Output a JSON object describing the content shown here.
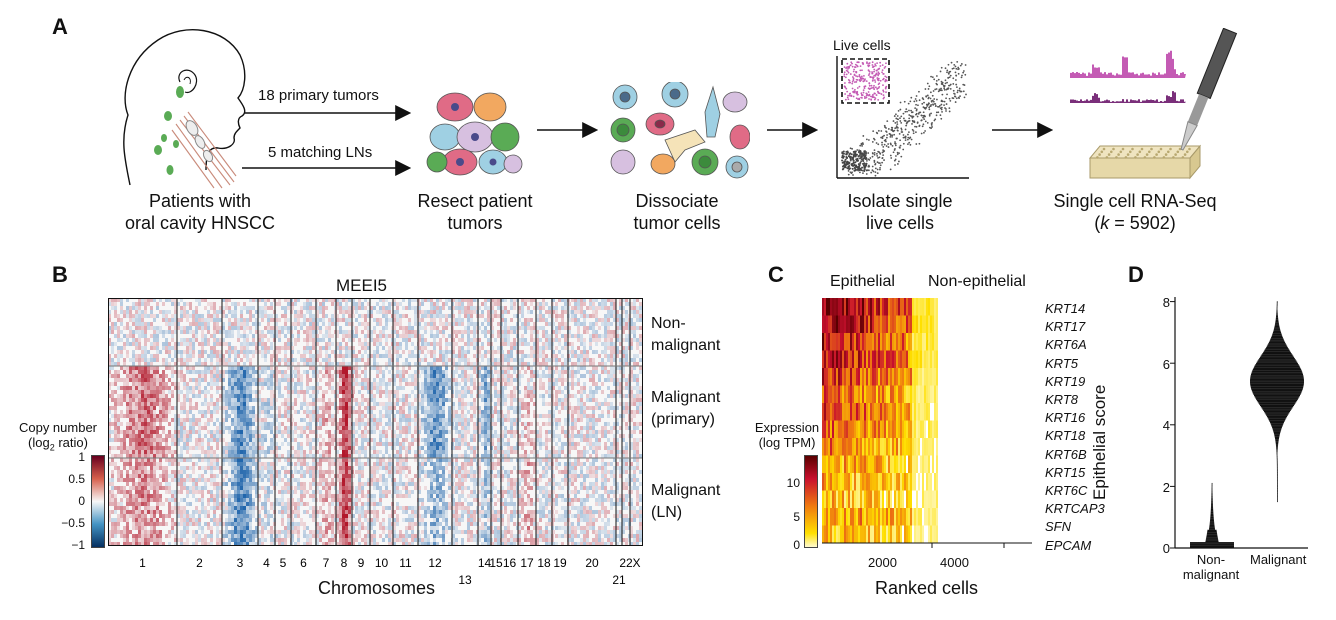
{
  "panel_a": {
    "label": "A",
    "patients_label_line1": "Patients with",
    "patients_label_line2": "oral cavity HNSCC",
    "arrow1_label": "18 primary tumors",
    "arrow2_label": "5 matching LNs",
    "resect_line1": "Resect patient",
    "resect_line2": "tumors",
    "dissociate_line1": "Dissociate",
    "dissociate_line2": "tumor cells",
    "live_cells_label": "Live cells",
    "isolate_line1": "Isolate single",
    "isolate_line2": "live cells",
    "scrna_line1": "Single cell RNA-Seq",
    "scrna_k": "k",
    "scrna_line2_rest": " = 5902)"
  },
  "panel_b": {
    "label": "B",
    "title": "MEEI5",
    "row_labels": [
      "Non-\nmalignant",
      "Malignant\n(primary)",
      "Malignant\n(LN)"
    ],
    "colorbar_title_line1": "Copy number",
    "colorbar_title_line2a": "(log",
    "colorbar_title_sub": "2",
    "colorbar_title_line2b": " ratio)",
    "colorbar_ticks": [
      "1",
      "0.5",
      "0",
      "−0.5",
      "−1"
    ],
    "chromosomes_top": [
      "1",
      "2",
      "3",
      "4",
      "5",
      "6",
      "7",
      "8",
      "9",
      "10",
      "11",
      "12",
      "14",
      "15",
      "16",
      "17",
      "18",
      "19",
      "20",
      "22",
      "X"
    ],
    "chromosomes_bottom": [
      "13",
      "21"
    ],
    "xlabel": "Chromosomes"
  },
  "panel_c": {
    "label": "C",
    "header_epithelial": "Epithelial",
    "header_nonepithelial": "Non-epithelial",
    "genes": [
      "KRT14",
      "KRT17",
      "KRT6A",
      "KRT5",
      "KRT19",
      "KRT8",
      "KRT16",
      "KRT18",
      "KRT6B",
      "KRT15",
      "KRT6C",
      "KRTCAP3",
      "SFN",
      "EPCAM"
    ],
    "colorbar_title_line1": "Expression",
    "colorbar_title_line2": "(log TPM)",
    "colorbar_ticks": [
      "10",
      "5",
      "0"
    ],
    "x_ticks": [
      "2000",
      "4000"
    ],
    "xlabel": "Ranked cells"
  },
  "panel_d": {
    "label": "D",
    "ylabel": "Epithelial score",
    "y_ticks": [
      "8",
      "6",
      "4",
      "2",
      "0"
    ],
    "cat1_line1": "Non-",
    "cat1_line2": "malignant",
    "cat2": "Malignant"
  },
  "chart_data": [
    {
      "type": "heatmap",
      "title": "MEEI5",
      "xlabel": "Chromosomes",
      "categories": [
        "1",
        "2",
        "3",
        "4",
        "5",
        "6",
        "7",
        "8",
        "9",
        "10",
        "11",
        "12",
        "13",
        "14",
        "15",
        "16",
        "17",
        "18",
        "19",
        "20",
        "21",
        "22",
        "X"
      ],
      "rows": [
        "Non-malignant",
        "Malignant (primary)",
        "Malignant (LN)"
      ],
      "colorbar_range": [
        -1,
        1
      ],
      "colors": {
        "high": "#b2182b",
        "mid": "#f7f7f7",
        "low": "#2166ac"
      }
    },
    {
      "type": "heatmap",
      "xlabel": "Ranked cells",
      "x_ticks": [
        2000,
        4000
      ],
      "genes": [
        "KRT14",
        "KRT17",
        "KRT6A",
        "KRT5",
        "KRT19",
        "KRT8",
        "KRT16",
        "KRT18",
        "KRT6B",
        "KRT15",
        "KRT6C",
        "KRTCAP3",
        "SFN",
        "EPCAM"
      ],
      "colorbar_range": [
        0,
        13
      ]
    },
    {
      "type": "scatter",
      "ylabel": "Epithelial score",
      "ylim": [
        0,
        8
      ],
      "categories": [
        "Non-malignant",
        "Malignant"
      ],
      "distributions": [
        {
          "name": "Non-malignant",
          "center": 0.1,
          "max": 2.1
        },
        {
          "name": "Malignant",
          "center": 5.4,
          "min": 1.5,
          "max": 8.0
        }
      ]
    }
  ]
}
